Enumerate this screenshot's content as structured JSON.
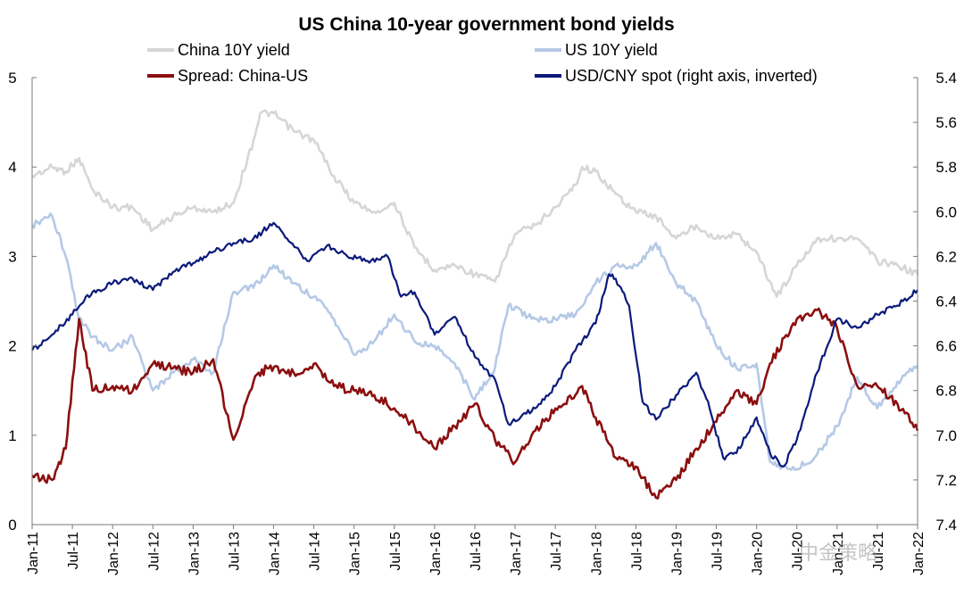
{
  "chart_data": {
    "type": "line",
    "title": "US China 10-year government bond yields",
    "left_axis": {
      "ylim": [
        0,
        5
      ],
      "ticks": [
        "0",
        "1",
        "2",
        "3",
        "4",
        "5"
      ]
    },
    "right_axis": {
      "inverted": true,
      "ylim": [
        5.4,
        7.4
      ],
      "ticks": [
        "5.4",
        "5.6",
        "5.8",
        "6.0",
        "6.2",
        "6.4",
        "6.6",
        "6.8",
        "7.0",
        "7.2",
        "7.4"
      ]
    },
    "x_axis": {
      "start": "2011-01",
      "end": "2022-01",
      "ticks": [
        "Jan-11",
        "Jul-11",
        "Jan-12",
        "Jul-12",
        "Jan-13",
        "Jul-13",
        "Jan-14",
        "Jul-14",
        "Jan-15",
        "Jul-15",
        "Jan-16",
        "Jul-16",
        "Jan-17",
        "Jul-17",
        "Jan-18",
        "Jul-18",
        "Jan-19",
        "Jul-19",
        "Jan-20",
        "Jul-20",
        "Jan-21",
        "Jul-21",
        "Jan-22"
      ]
    },
    "legend_placement": "top",
    "series": [
      {
        "name": "China 10Y yield",
        "axis": "left",
        "color": "#d6d6d6",
        "x": [
          "2011-01",
          "2011-04",
          "2011-06",
          "2011-08",
          "2011-10",
          "2012-01",
          "2012-04",
          "2012-07",
          "2012-10",
          "2013-01",
          "2013-04",
          "2013-07",
          "2013-10",
          "2013-11",
          "2014-01",
          "2014-04",
          "2014-07",
          "2014-10",
          "2015-01",
          "2015-04",
          "2015-07",
          "2015-10",
          "2016-01",
          "2016-04",
          "2016-07",
          "2016-10",
          "2017-01",
          "2017-04",
          "2017-07",
          "2017-10",
          "2017-11",
          "2018-01",
          "2018-04",
          "2018-07",
          "2018-10",
          "2019-01",
          "2019-04",
          "2019-07",
          "2019-10",
          "2020-01",
          "2020-04",
          "2020-07",
          "2020-10",
          "2021-01",
          "2021-04",
          "2021-07",
          "2021-10",
          "2022-01"
        ],
        "values": [
          3.9,
          4.0,
          3.95,
          4.1,
          3.75,
          3.55,
          3.55,
          3.3,
          3.45,
          3.55,
          3.5,
          3.6,
          4.3,
          4.6,
          4.6,
          4.4,
          4.3,
          3.9,
          3.6,
          3.5,
          3.6,
          3.1,
          2.85,
          2.9,
          2.8,
          2.72,
          3.25,
          3.35,
          3.55,
          3.8,
          4.0,
          3.95,
          3.7,
          3.5,
          3.45,
          3.2,
          3.35,
          3.2,
          3.25,
          3.05,
          2.55,
          2.9,
          3.2,
          3.2,
          3.2,
          2.95,
          2.9,
          2.8
        ]
      },
      {
        "name": "US 10Y yield",
        "axis": "left",
        "color": "#b5c9e6",
        "x": [
          "2011-01",
          "2011-04",
          "2011-06",
          "2011-08",
          "2011-10",
          "2012-01",
          "2012-04",
          "2012-07",
          "2012-10",
          "2013-01",
          "2013-04",
          "2013-07",
          "2013-10",
          "2014-01",
          "2014-04",
          "2014-07",
          "2014-10",
          "2015-01",
          "2015-04",
          "2015-07",
          "2015-10",
          "2016-01",
          "2016-04",
          "2016-07",
          "2016-10",
          "2016-12",
          "2017-04",
          "2017-07",
          "2017-10",
          "2018-01",
          "2018-04",
          "2018-07",
          "2018-10",
          "2019-01",
          "2019-04",
          "2019-07",
          "2019-10",
          "2020-01",
          "2020-03",
          "2020-04",
          "2020-07",
          "2020-10",
          "2021-01",
          "2021-04",
          "2021-07",
          "2021-10",
          "2022-01"
        ],
        "values": [
          3.35,
          3.45,
          3.0,
          2.3,
          2.1,
          1.95,
          2.1,
          1.5,
          1.7,
          1.85,
          1.7,
          2.6,
          2.65,
          2.9,
          2.7,
          2.55,
          2.3,
          1.9,
          2.05,
          2.35,
          2.05,
          2.0,
          1.8,
          1.4,
          1.75,
          2.45,
          2.3,
          2.3,
          2.35,
          2.7,
          2.9,
          2.9,
          3.15,
          2.7,
          2.5,
          2.0,
          1.75,
          1.8,
          0.7,
          0.65,
          0.62,
          0.78,
          1.1,
          1.65,
          1.3,
          1.6,
          1.78
        ]
      },
      {
        "name": "Spread: China-US",
        "axis": "left",
        "color": "#8b0f0f",
        "x": [
          "2011-01",
          "2011-04",
          "2011-06",
          "2011-08",
          "2011-10",
          "2012-01",
          "2012-04",
          "2012-07",
          "2012-10",
          "2013-01",
          "2013-04",
          "2013-07",
          "2013-10",
          "2013-12",
          "2014-04",
          "2014-07",
          "2014-10",
          "2015-01",
          "2015-04",
          "2015-07",
          "2015-10",
          "2016-01",
          "2016-04",
          "2016-07",
          "2016-10",
          "2017-01",
          "2017-04",
          "2017-07",
          "2017-10",
          "2017-11",
          "2018-01",
          "2018-04",
          "2018-07",
          "2018-10",
          "2019-01",
          "2019-04",
          "2019-07",
          "2019-10",
          "2020-01",
          "2020-03",
          "2020-07",
          "2020-10",
          "2021-01",
          "2021-04",
          "2021-07",
          "2021-10",
          "2022-01"
        ],
        "values": [
          0.55,
          0.5,
          0.85,
          2.3,
          1.5,
          1.55,
          1.5,
          1.8,
          1.75,
          1.7,
          1.85,
          0.95,
          1.6,
          1.75,
          1.7,
          1.8,
          1.55,
          1.5,
          1.45,
          1.3,
          1.1,
          0.85,
          1.1,
          1.35,
          0.95,
          0.7,
          1.05,
          1.3,
          1.45,
          1.55,
          1.2,
          0.75,
          0.65,
          0.3,
          0.5,
          0.85,
          1.15,
          1.5,
          1.35,
          1.8,
          2.3,
          2.4,
          2.2,
          1.55,
          1.55,
          1.35,
          1.05
        ]
      },
      {
        "name": "USD/CNY spot (right axis, inverted)",
        "axis": "right",
        "color": "#0a1a7a",
        "x": [
          "2011-01",
          "2011-04",
          "2011-07",
          "2011-09",
          "2011-11",
          "2012-01",
          "2012-04",
          "2012-07",
          "2012-10",
          "2013-01",
          "2013-04",
          "2013-07",
          "2013-10",
          "2014-01",
          "2014-03",
          "2014-06",
          "2014-09",
          "2014-12",
          "2015-03",
          "2015-06",
          "2015-08",
          "2015-10",
          "2016-01",
          "2016-04",
          "2016-07",
          "2016-10",
          "2016-12",
          "2017-04",
          "2017-07",
          "2017-10",
          "2018-01",
          "2018-03",
          "2018-04",
          "2018-06",
          "2018-08",
          "2018-10",
          "2019-01",
          "2019-04",
          "2019-06",
          "2019-08",
          "2019-10",
          "2020-01",
          "2020-03",
          "2020-05",
          "2020-07",
          "2020-10",
          "2021-01",
          "2021-04",
          "2021-07",
          "2021-10",
          "2022-01"
        ],
        "values": [
          6.62,
          6.55,
          6.46,
          6.38,
          6.35,
          6.32,
          6.3,
          6.35,
          6.27,
          6.23,
          6.18,
          6.14,
          6.12,
          6.05,
          6.12,
          6.22,
          6.15,
          6.2,
          6.22,
          6.2,
          6.38,
          6.36,
          6.55,
          6.47,
          6.65,
          6.75,
          6.95,
          6.88,
          6.78,
          6.62,
          6.5,
          6.28,
          6.3,
          6.42,
          6.85,
          6.93,
          6.82,
          6.72,
          6.88,
          7.1,
          7.08,
          6.92,
          7.08,
          7.14,
          7.02,
          6.72,
          6.48,
          6.52,
          6.46,
          6.42,
          6.35
        ]
      }
    ]
  },
  "watermark": "中金策略"
}
